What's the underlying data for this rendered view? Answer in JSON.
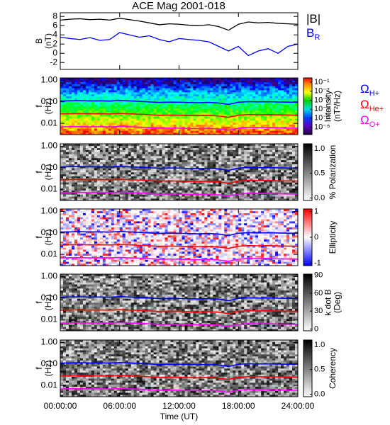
{
  "chart_data": [
    {
      "type": "line",
      "title": "ACE Mag 2001-018",
      "ylabel": [
        "B",
        "(nT)"
      ],
      "x": [
        0,
        1,
        2,
        3,
        4,
        5,
        6,
        7,
        8,
        9,
        10,
        11,
        12,
        13,
        14,
        15,
        16,
        17,
        18,
        19,
        20,
        21,
        22,
        23,
        24
      ],
      "xlim": [
        0,
        24
      ],
      "ylim": [
        -3.5,
        8.8
      ],
      "yticks": [
        -2,
        0,
        2,
        4,
        6,
        8
      ],
      "series": [
        {
          "name": "|B|",
          "color": "#000000",
          "values": [
            7.2,
            7.4,
            7.5,
            7.3,
            7.4,
            7.2,
            7.6,
            7.3,
            7.0,
            6.6,
            6.2,
            6.4,
            6.3,
            6.1,
            6.0,
            6.2,
            5.8,
            5.0,
            6.3,
            6.8,
            6.6,
            6.7,
            6.5,
            6.4,
            6.3
          ]
        },
        {
          "name": "B",
          "subscript": "R",
          "color": "#0000ff",
          "values": [
            3.5,
            3.2,
            3.0,
            3.4,
            2.8,
            3.0,
            4.5,
            4.0,
            3.5,
            3.8,
            3.0,
            2.5,
            3.2,
            3.0,
            2.8,
            2.5,
            1.5,
            0.5,
            1.5,
            -0.5,
            0.5,
            1.0,
            0.0,
            1.5,
            2.0
          ]
        }
      ]
    },
    {
      "type": "spectrogram",
      "texture": "intensity",
      "ylabel": [
        "f",
        "(Hz)"
      ],
      "ylog": true,
      "ylim": [
        0.003,
        1.3
      ],
      "yticks": [
        0.01,
        {
          "value": 0.1,
          "label": "0.10"
        },
        {
          "value": 1,
          "label": "1.00"
        }
      ],
      "x": [
        0,
        1,
        2,
        3,
        4,
        5,
        6,
        7,
        8,
        9,
        10,
        11,
        12,
        13,
        14,
        15,
        16,
        17,
        18,
        19,
        20,
        21,
        22,
        23,
        24
      ],
      "xlim": [
        0,
        24
      ],
      "clabel": [
        "Intensity",
        "(nT²/Hz)"
      ],
      "clog": true,
      "clim": [
        1.5e-07,
        0.3
      ],
      "cticks": [
        {
          "value": 0.1,
          "label": "10⁻¹"
        },
        {
          "value": 0.01,
          "label": "10⁻²"
        },
        {
          "value": 0.001,
          "label": "10⁻³"
        },
        {
          "value": 0.0001,
          "label": "10⁻⁴"
        },
        {
          "value": 1e-05,
          "label": "10⁻⁵"
        },
        {
          "value": 1e-06,
          "label": "10⁻⁶"
        }
      ],
      "series": [
        {
          "name": "Ω",
          "subscript": "H+",
          "color": "#0000ff",
          "values": [
            0.109,
            0.112,
            0.114,
            0.111,
            0.112,
            0.109,
            0.116,
            0.111,
            0.106,
            0.1,
            0.094,
            0.097,
            0.096,
            0.093,
            0.091,
            0.094,
            0.088,
            0.076,
            0.096,
            0.103,
            0.1,
            0.102,
            0.099,
            0.097,
            0.096
          ]
        },
        {
          "name": "Ω",
          "subscript": "He+",
          "color": "#ff0000",
          "values": [
            0.0274,
            0.0281,
            0.0285,
            0.0277,
            0.0281,
            0.0274,
            0.0289,
            0.0277,
            0.0266,
            0.0251,
            0.0236,
            0.0243,
            0.0239,
            0.0232,
            0.0228,
            0.0236,
            0.022,
            0.019,
            0.0239,
            0.0258,
            0.0251,
            0.0255,
            0.0247,
            0.0243,
            0.0239
          ]
        },
        {
          "name": "Ω",
          "subscript": "O+",
          "color": "#ff00ff",
          "values": [
            0.0068,
            0.007,
            0.0071,
            0.0069,
            0.007,
            0.0068,
            0.0072,
            0.0069,
            0.0067,
            0.0063,
            0.0059,
            0.0061,
            0.006,
            0.0058,
            0.0057,
            0.0059,
            0.0055,
            0.0048,
            0.006,
            0.0065,
            0.0063,
            0.0064,
            0.0062,
            0.0061,
            0.006
          ]
        }
      ]
    },
    {
      "type": "spectrogram",
      "texture": "gray",
      "ylabel": [
        "f",
        "(Hz)"
      ],
      "ylog": true,
      "ylim": [
        0.003,
        1.3
      ],
      "yticks": [
        0.01,
        {
          "value": 0.1,
          "label": "0.10"
        },
        {
          "value": 1,
          "label": "1.00"
        }
      ],
      "xlim": [
        0,
        24
      ],
      "clabel": [
        "% Polarization"
      ],
      "clim": [
        -0.05,
        1.1
      ],
      "cticks": [
        {
          "value": 0,
          "label": "0.0"
        },
        0.5,
        {
          "value": 1,
          "label": "1.0"
        }
      ]
    },
    {
      "type": "spectrogram",
      "texture": "ellipticity",
      "ylabel": [
        "f",
        "(Hz)"
      ],
      "ylog": true,
      "ylim": [
        0.003,
        1.3
      ],
      "yticks": [
        0.01,
        {
          "value": 0.1,
          "label": "0.10"
        },
        {
          "value": 1,
          "label": "1.00"
        }
      ],
      "xlim": [
        0,
        24
      ],
      "clabel": [
        "Ellipticity"
      ],
      "clim": [
        -1.1,
        1.1
      ],
      "cticks": [
        -1,
        0,
        1
      ]
    },
    {
      "type": "spectrogram",
      "texture": "gray",
      "ylabel": [
        "f",
        "(Hz)"
      ],
      "ylog": true,
      "ylim": [
        0.003,
        1.3
      ],
      "yticks": [
        0.01,
        {
          "value": 0.1,
          "label": "0.10"
        },
        {
          "value": 1,
          "label": "1.00"
        }
      ],
      "xlim": [
        0,
        24
      ],
      "clabel": [
        "k dot B",
        "(Deg)"
      ],
      "clim": [
        -3,
        92
      ],
      "cticks": [
        0,
        30,
        60,
        90
      ]
    },
    {
      "type": "spectrogram",
      "texture": "gray",
      "ylabel": [
        "f",
        "(Hz)"
      ],
      "ylog": true,
      "ylim": [
        0.003,
        1.3
      ],
      "yticks": [
        0.01,
        {
          "value": 0.1,
          "label": "0.10"
        },
        {
          "value": 1,
          "label": "1.00"
        }
      ],
      "xlim": [
        0,
        24
      ],
      "clabel": [
        "Coherency"
      ],
      "clim": [
        -0.05,
        1.1
      ],
      "cticks": [
        {
          "value": 0,
          "label": "0.0"
        },
        0.5,
        {
          "value": 1,
          "label": "1.0"
        }
      ],
      "xlabel": "Time (UT)",
      "xticks": [
        {
          "value": 0,
          "label": "00:00:00"
        },
        {
          "value": 6,
          "label": "06:00:00"
        },
        {
          "value": 12,
          "label": "12:00:00"
        },
        {
          "value": 18,
          "label": "18:00:00"
        },
        {
          "value": 24,
          "label": "24:00:00"
        }
      ]
    }
  ]
}
